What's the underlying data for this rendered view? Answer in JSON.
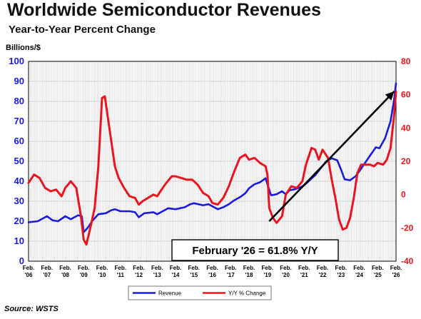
{
  "header": {
    "title": "Worldwide Semiconductor Revenues",
    "subtitle": "Year-to-Year Percent Change"
  },
  "footer": {
    "source": "Source: WSTS"
  },
  "colors": {
    "revenue": "#1a1adb",
    "yy": "#e8141e",
    "left_axis": "#1a1adb",
    "right_axis": "#e8141e",
    "grid": "#c8c8c8"
  },
  "chart_data": {
    "type": "line",
    "ylabel_left": "Billions/$",
    "ylim_left": [
      0,
      100
    ],
    "ylim_right": [
      -40,
      80
    ],
    "yticks_left": [
      "0",
      "10",
      "20",
      "30",
      "40",
      "50",
      "60",
      "70",
      "80",
      "90",
      "100"
    ],
    "yticks_right": [
      "-40",
      "-20",
      "0",
      "20",
      "40",
      "60",
      "80"
    ],
    "xticks": [
      {
        "top": "Feb.",
        "bottom": "'06"
      },
      {
        "top": "Feb.",
        "bottom": "'07"
      },
      {
        "top": "Feb.",
        "bottom": "'08"
      },
      {
        "top": "Feb.",
        "bottom": "'09"
      },
      {
        "top": "Feb.",
        "bottom": "'10"
      },
      {
        "top": "Feb.",
        "bottom": "'11"
      },
      {
        "top": "Feb.",
        "bottom": "'12"
      },
      {
        "top": "Feb.",
        "bottom": "'13"
      },
      {
        "top": "Feb.",
        "bottom": "'14"
      },
      {
        "top": "Feb.",
        "bottom": "'15"
      },
      {
        "top": "Feb.",
        "bottom": "'16"
      },
      {
        "top": "Feb.",
        "bottom": "'17"
      },
      {
        "top": "Feb.",
        "bottom": "'18"
      },
      {
        "top": "Feb.",
        "bottom": "'19"
      },
      {
        "top": "Feb.",
        "bottom": "'20"
      },
      {
        "top": "Feb.",
        "bottom": "'21"
      },
      {
        "top": "Feb.",
        "bottom": "'22"
      },
      {
        "top": "Feb.",
        "bottom": "'23"
      },
      {
        "top": "Feb.",
        "bottom": "'24"
      },
      {
        "top": "Feb.",
        "bottom": "'25"
      },
      {
        "top": "Feb.",
        "bottom": "'26"
      }
    ],
    "grid": true,
    "legend_position": "bottom-center",
    "annotation": {
      "text": "February '26 = 61.8% Y/Y",
      "arrow_from": [
        2019.1,
        20
      ],
      "arrow_to": [
        2025.9,
        85
      ]
    },
    "series": [
      {
        "name": "Revenue",
        "axis": "left",
        "points": [
          [
            2006.0,
            19.5
          ],
          [
            2006.5,
            20.0
          ],
          [
            2007.0,
            22.5
          ],
          [
            2007.3,
            20.5
          ],
          [
            2007.6,
            20.0
          ],
          [
            2008.0,
            22.5
          ],
          [
            2008.3,
            21.0
          ],
          [
            2008.7,
            23.0
          ],
          [
            2008.9,
            22.5
          ],
          [
            2009.0,
            14.5
          ],
          [
            2009.2,
            16.5
          ],
          [
            2009.5,
            20.5
          ],
          [
            2009.8,
            23.5
          ],
          [
            2010.2,
            24.0
          ],
          [
            2010.5,
            25.5
          ],
          [
            2010.7,
            26.0
          ],
          [
            2011.0,
            25.0
          ],
          [
            2011.5,
            25.0
          ],
          [
            2011.8,
            24.5
          ],
          [
            2012.0,
            22.0
          ],
          [
            2012.3,
            24.0
          ],
          [
            2012.8,
            24.5
          ],
          [
            2013.0,
            23.5
          ],
          [
            2013.3,
            25.0
          ],
          [
            2013.6,
            26.5
          ],
          [
            2014.0,
            26.0
          ],
          [
            2014.5,
            27.0
          ],
          [
            2014.8,
            28.5
          ],
          [
            2015.0,
            29.0
          ],
          [
            2015.5,
            28.0
          ],
          [
            2015.8,
            28.5
          ],
          [
            2016.0,
            27.5
          ],
          [
            2016.3,
            26.0
          ],
          [
            2016.6,
            27.0
          ],
          [
            2016.9,
            28.5
          ],
          [
            2017.2,
            30.5
          ],
          [
            2017.5,
            32.0
          ],
          [
            2017.8,
            34.0
          ],
          [
            2018.0,
            36.5
          ],
          [
            2018.3,
            38.5
          ],
          [
            2018.6,
            39.5
          ],
          [
            2018.9,
            41.5
          ],
          [
            2019.0,
            38.5
          ],
          [
            2019.2,
            33.0
          ],
          [
            2019.5,
            33.5
          ],
          [
            2019.8,
            35.0
          ],
          [
            2020.0,
            33.5
          ],
          [
            2020.2,
            35.5
          ],
          [
            2020.5,
            36.0
          ],
          [
            2020.8,
            37.0
          ],
          [
            2021.0,
            38.0
          ],
          [
            2021.3,
            40.5
          ],
          [
            2021.6,
            43.0
          ],
          [
            2021.9,
            46.5
          ],
          [
            2022.2,
            50.0
          ],
          [
            2022.5,
            51.5
          ],
          [
            2022.8,
            50.5
          ],
          [
            2023.0,
            46.0
          ],
          [
            2023.2,
            41.0
          ],
          [
            2023.5,
            40.5
          ],
          [
            2023.8,
            42.5
          ],
          [
            2024.0,
            45.0
          ],
          [
            2024.3,
            49.0
          ],
          [
            2024.6,
            53.0
          ],
          [
            2024.9,
            57.0
          ],
          [
            2025.1,
            56.5
          ],
          [
            2025.4,
            61.5
          ],
          [
            2025.7,
            70.0
          ],
          [
            2025.9,
            81.0
          ],
          [
            2026.0,
            89.0
          ]
        ]
      },
      {
        "name": "Y/Y % Change",
        "axis": "right",
        "points": [
          [
            2006.0,
            7
          ],
          [
            2006.3,
            12
          ],
          [
            2006.6,
            10
          ],
          [
            2006.9,
            4
          ],
          [
            2007.2,
            2
          ],
          [
            2007.5,
            3
          ],
          [
            2007.8,
            -1
          ],
          [
            2008.0,
            4
          ],
          [
            2008.3,
            8
          ],
          [
            2008.6,
            4
          ],
          [
            2008.85,
            -13
          ],
          [
            2009.0,
            -27
          ],
          [
            2009.15,
            -30
          ],
          [
            2009.4,
            -18
          ],
          [
            2009.6,
            -8
          ],
          [
            2009.8,
            17
          ],
          [
            2010.0,
            58
          ],
          [
            2010.15,
            59
          ],
          [
            2010.4,
            40
          ],
          [
            2010.7,
            17
          ],
          [
            2010.9,
            10
          ],
          [
            2011.2,
            4
          ],
          [
            2011.5,
            -1
          ],
          [
            2011.8,
            -2
          ],
          [
            2012.0,
            -6
          ],
          [
            2012.2,
            -4
          ],
          [
            2012.5,
            -2
          ],
          [
            2012.8,
            0
          ],
          [
            2013.0,
            -1
          ],
          [
            2013.3,
            4
          ],
          [
            2013.5,
            7
          ],
          [
            2013.8,
            11
          ],
          [
            2014.0,
            11
          ],
          [
            2014.3,
            10
          ],
          [
            2014.6,
            9
          ],
          [
            2014.9,
            9
          ],
          [
            2015.2,
            6
          ],
          [
            2015.5,
            1
          ],
          [
            2015.8,
            -1
          ],
          [
            2016.0,
            -5
          ],
          [
            2016.3,
            -6
          ],
          [
            2016.6,
            -2
          ],
          [
            2016.9,
            5
          ],
          [
            2017.2,
            14
          ],
          [
            2017.5,
            22
          ],
          [
            2017.8,
            24
          ],
          [
            2018.0,
            21
          ],
          [
            2018.3,
            22
          ],
          [
            2018.6,
            19
          ],
          [
            2018.9,
            17
          ],
          [
            2019.0,
            12
          ],
          [
            2019.1,
            -8
          ],
          [
            2019.3,
            -14
          ],
          [
            2019.5,
            -17
          ],
          [
            2019.8,
            -13
          ],
          [
            2020.0,
            0
          ],
          [
            2020.3,
            5
          ],
          [
            2020.6,
            4
          ],
          [
            2020.9,
            8
          ],
          [
            2021.1,
            18
          ],
          [
            2021.4,
            28
          ],
          [
            2021.6,
            27
          ],
          [
            2021.8,
            21
          ],
          [
            2022.0,
            27
          ],
          [
            2022.3,
            22
          ],
          [
            2022.5,
            9
          ],
          [
            2022.7,
            -2
          ],
          [
            2022.9,
            -15
          ],
          [
            2023.1,
            -21
          ],
          [
            2023.3,
            -20
          ],
          [
            2023.5,
            -14
          ],
          [
            2023.7,
            -2
          ],
          [
            2023.9,
            13
          ],
          [
            2024.1,
            18
          ],
          [
            2024.4,
            18
          ],
          [
            2024.6,
            18
          ],
          [
            2024.8,
            17
          ],
          [
            2025.0,
            19
          ],
          [
            2025.3,
            18
          ],
          [
            2025.5,
            21
          ],
          [
            2025.7,
            28
          ],
          [
            2025.9,
            48
          ],
          [
            2026.0,
            61.8
          ]
        ]
      }
    ]
  }
}
